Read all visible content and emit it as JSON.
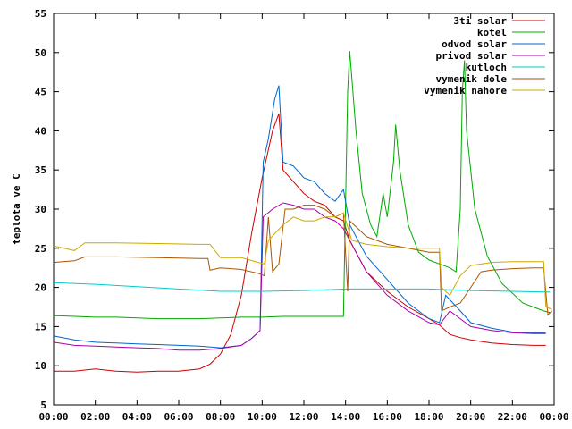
{
  "chart_data": {
    "type": "line",
    "ylabel": "teplota ve C",
    "xlim": [
      0,
      24
    ],
    "ylim": [
      5,
      55
    ],
    "x_ticks": [
      "00:00",
      "02:00",
      "04:00",
      "06:00",
      "08:00",
      "10:00",
      "12:00",
      "14:00",
      "16:00",
      "18:00",
      "20:00",
      "22:00",
      "00:00"
    ],
    "y_ticks": [
      "5",
      "10",
      "15",
      "20",
      "25",
      "30",
      "35",
      "40",
      "45",
      "50",
      "55"
    ],
    "legend_position": "top-right",
    "grid": false,
    "series": [
      {
        "name": "3ti solar",
        "color": "#cc0000",
        "points": [
          [
            0,
            9.3
          ],
          [
            1,
            9.3
          ],
          [
            2,
            9.6
          ],
          [
            3,
            9.3
          ],
          [
            4,
            9.2
          ],
          [
            5,
            9.3
          ],
          [
            6,
            9.3
          ],
          [
            7,
            9.6
          ],
          [
            7.5,
            10.2
          ],
          [
            8,
            11.5
          ],
          [
            8.5,
            14
          ],
          [
            9,
            19
          ],
          [
            9.5,
            27
          ],
          [
            10,
            34
          ],
          [
            10.5,
            40
          ],
          [
            10.8,
            42.2
          ],
          [
            11,
            35
          ],
          [
            11.5,
            33.5
          ],
          [
            12,
            32
          ],
          [
            12.5,
            31
          ],
          [
            13,
            30.5
          ],
          [
            13.5,
            29
          ],
          [
            13.9,
            28.5
          ],
          [
            14.2,
            26
          ],
          [
            15,
            22
          ],
          [
            16,
            19.5
          ],
          [
            17,
            17.5
          ],
          [
            18,
            16
          ],
          [
            18.5,
            15.2
          ],
          [
            19,
            14
          ],
          [
            19.5,
            13.6
          ],
          [
            20,
            13.3
          ],
          [
            21,
            12.9
          ],
          [
            22,
            12.7
          ],
          [
            23,
            12.6
          ],
          [
            23.6,
            12.6
          ]
        ]
      },
      {
        "name": "kotel",
        "color": "#00aa00",
        "points": [
          [
            0,
            16.4
          ],
          [
            1,
            16.3
          ],
          [
            2,
            16.2
          ],
          [
            3,
            16.2
          ],
          [
            4,
            16.1
          ],
          [
            5,
            16.0
          ],
          [
            6,
            16.0
          ],
          [
            7,
            16.0
          ],
          [
            8,
            16.1
          ],
          [
            9,
            16.2
          ],
          [
            10,
            16.2
          ],
          [
            11,
            16.3
          ],
          [
            12,
            16.3
          ],
          [
            13,
            16.3
          ],
          [
            13.9,
            16.3
          ],
          [
            14.1,
            45
          ],
          [
            14.2,
            50.2
          ],
          [
            14.5,
            40
          ],
          [
            14.8,
            32
          ],
          [
            15.2,
            28
          ],
          [
            15.5,
            26.5
          ],
          [
            15.8,
            32
          ],
          [
            16,
            29
          ],
          [
            16.3,
            36
          ],
          [
            16.4,
            40.8
          ],
          [
            16.6,
            35
          ],
          [
            17,
            28
          ],
          [
            17.5,
            24.5
          ],
          [
            18,
            23.5
          ],
          [
            18.5,
            23.0
          ],
          [
            19,
            22.5
          ],
          [
            19.3,
            22
          ],
          [
            19.5,
            30
          ],
          [
            19.6,
            45
          ],
          [
            19.7,
            49
          ],
          [
            19.8,
            40
          ],
          [
            20.2,
            30
          ],
          [
            20.8,
            24
          ],
          [
            21.5,
            20.5
          ],
          [
            22.5,
            18.0
          ],
          [
            23.5,
            17.0
          ],
          [
            23.8,
            16.8
          ]
        ]
      },
      {
        "name": "odvod solar",
        "color": "#0066cc",
        "points": [
          [
            0,
            13.8
          ],
          [
            1,
            13.3
          ],
          [
            2,
            13.0
          ],
          [
            3,
            12.9
          ],
          [
            4,
            12.8
          ],
          [
            5,
            12.7
          ],
          [
            6,
            12.6
          ],
          [
            7,
            12.5
          ],
          [
            8,
            12.3
          ],
          [
            9,
            12.6
          ],
          [
            9.5,
            13.5
          ],
          [
            9.9,
            14.5
          ],
          [
            10.05,
            36
          ],
          [
            10.3,
            39
          ],
          [
            10.6,
            44
          ],
          [
            10.8,
            45.8
          ],
          [
            11,
            36
          ],
          [
            11.5,
            35.5
          ],
          [
            12,
            34
          ],
          [
            12.5,
            33.5
          ],
          [
            13,
            32
          ],
          [
            13.5,
            31
          ],
          [
            13.9,
            32.5
          ],
          [
            14.2,
            28
          ],
          [
            15,
            24
          ],
          [
            16,
            21
          ],
          [
            17,
            18
          ],
          [
            18,
            16
          ],
          [
            18.5,
            15.5
          ],
          [
            18.8,
            19
          ],
          [
            19.5,
            17
          ],
          [
            20,
            15.5
          ],
          [
            21,
            14.8
          ],
          [
            22,
            14.3
          ],
          [
            23,
            14.2
          ],
          [
            23.6,
            14.2
          ]
        ]
      },
      {
        "name": "privod solar",
        "color": "#aa00aa",
        "points": [
          [
            0,
            13.0
          ],
          [
            1,
            12.6
          ],
          [
            2,
            12.5
          ],
          [
            3,
            12.4
          ],
          [
            4,
            12.3
          ],
          [
            5,
            12.2
          ],
          [
            6,
            12.0
          ],
          [
            7,
            12.0
          ],
          [
            8,
            12.2
          ],
          [
            9,
            12.6
          ],
          [
            9.5,
            13.5
          ],
          [
            9.9,
            14.5
          ],
          [
            10.05,
            29
          ],
          [
            10.5,
            30
          ],
          [
            11,
            30.8
          ],
          [
            11.5,
            30.5
          ],
          [
            12,
            30
          ],
          [
            12.5,
            30
          ],
          [
            13,
            29
          ],
          [
            13.5,
            28.5
          ],
          [
            13.9,
            27.5
          ],
          [
            14.2,
            26
          ],
          [
            15,
            22
          ],
          [
            16,
            19
          ],
          [
            17,
            17
          ],
          [
            18,
            15.5
          ],
          [
            18.5,
            15.2
          ],
          [
            19,
            17
          ],
          [
            19.5,
            16
          ],
          [
            20,
            15
          ],
          [
            21,
            14.5
          ],
          [
            22,
            14.2
          ],
          [
            23,
            14.1
          ],
          [
            23.6,
            14.1
          ]
        ]
      },
      {
        "name": "kutloch",
        "color": "#00cccc",
        "points": [
          [
            0,
            20.6
          ],
          [
            2,
            20.4
          ],
          [
            4,
            20.1
          ],
          [
            6,
            19.8
          ],
          [
            8,
            19.5
          ],
          [
            10,
            19.5
          ],
          [
            12,
            19.6
          ],
          [
            14,
            19.8
          ],
          [
            16,
            19.8
          ],
          [
            18,
            19.8
          ],
          [
            20,
            19.6
          ],
          [
            22,
            19.5
          ],
          [
            23.8,
            19.4
          ]
        ]
      },
      {
        "name": "vymenik dole",
        "color": "#aa5500",
        "points": [
          [
            0,
            23.2
          ],
          [
            1,
            23.4
          ],
          [
            1.5,
            23.9
          ],
          [
            3,
            23.9
          ],
          [
            5,
            23.8
          ],
          [
            7,
            23.7
          ],
          [
            7.4,
            23.7
          ],
          [
            7.5,
            22.2
          ],
          [
            8,
            22.5
          ],
          [
            9,
            22.3
          ],
          [
            9.8,
            21.8
          ],
          [
            10.1,
            21.5
          ],
          [
            10.3,
            29
          ],
          [
            10.5,
            22
          ],
          [
            10.8,
            23
          ],
          [
            11.1,
            30
          ],
          [
            11.5,
            30
          ],
          [
            12,
            30.5
          ],
          [
            12.5,
            30.5
          ],
          [
            13,
            30
          ],
          [
            13.5,
            29
          ],
          [
            13.9,
            29.5
          ],
          [
            14.1,
            19.5
          ],
          [
            14.2,
            28.5
          ],
          [
            15,
            26.5
          ],
          [
            16,
            25.5
          ],
          [
            17,
            25
          ],
          [
            18,
            24.5
          ],
          [
            18.5,
            24.5
          ],
          [
            18.6,
            17
          ],
          [
            19,
            17.5
          ],
          [
            19.5,
            18
          ],
          [
            20,
            20
          ],
          [
            20.5,
            22
          ],
          [
            21,
            22.2
          ],
          [
            22,
            22.4
          ],
          [
            23,
            22.5
          ],
          [
            23.5,
            22.5
          ],
          [
            23.7,
            16.5
          ],
          [
            23.9,
            17
          ]
        ]
      },
      {
        "name": "vymenik nahore",
        "color": "#ccaa00",
        "points": [
          [
            0,
            25.3
          ],
          [
            0.5,
            25
          ],
          [
            1,
            24.7
          ],
          [
            1.5,
            25.7
          ],
          [
            3,
            25.7
          ],
          [
            5,
            25.6
          ],
          [
            7,
            25.5
          ],
          [
            7.5,
            25.5
          ],
          [
            8,
            23.8
          ],
          [
            9,
            23.8
          ],
          [
            9.8,
            23.2
          ],
          [
            10.1,
            23.0
          ],
          [
            10.3,
            26
          ],
          [
            11,
            28
          ],
          [
            11.5,
            29
          ],
          [
            12,
            28.5
          ],
          [
            12.5,
            28.5
          ],
          [
            13,
            29
          ],
          [
            13.5,
            29
          ],
          [
            13.9,
            29.5
          ],
          [
            14.3,
            26
          ],
          [
            15,
            25.5
          ],
          [
            16,
            25.2
          ],
          [
            17,
            25.0
          ],
          [
            18,
            25.0
          ],
          [
            18.5,
            25
          ],
          [
            18.6,
            20
          ],
          [
            19,
            19
          ],
          [
            19.5,
            21.5
          ],
          [
            20,
            22.8
          ],
          [
            21,
            23.2
          ],
          [
            22,
            23.3
          ],
          [
            23,
            23.3
          ],
          [
            23.5,
            23.3
          ],
          [
            23.6,
            17.5
          ],
          [
            23.9,
            17.2
          ]
        ]
      }
    ]
  }
}
